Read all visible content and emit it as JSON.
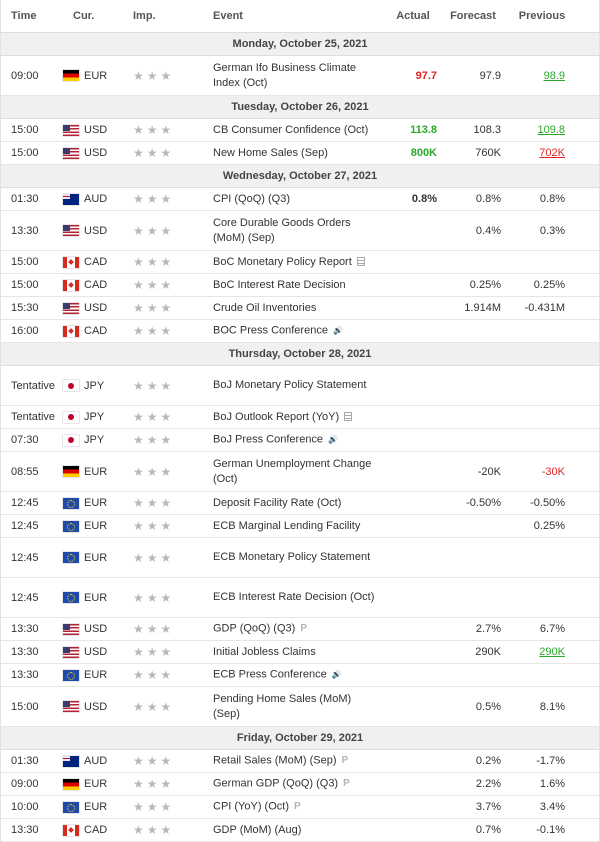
{
  "header": {
    "time": "Time",
    "cur": "Cur.",
    "imp": "Imp.",
    "event": "Event",
    "actual": "Actual",
    "forecast": "Forecast",
    "previous": "Previous"
  },
  "colors": {
    "positive": "#2ba92b",
    "negative": "#e02424",
    "stars": "#b8b8b8"
  },
  "days": [
    {
      "date": "Monday, October 25, 2021",
      "events": [
        {
          "time": "09:00",
          "flag": "de",
          "cur": "EUR",
          "event": "German Ifo Business Climate Index (Oct)",
          "icon": "",
          "actual": "97.7",
          "actual_style": "red bold",
          "forecast": "97.9",
          "previous": "98.9",
          "previous_style": "ul-green",
          "h": 2
        }
      ]
    },
    {
      "date": "Tuesday, October 26, 2021",
      "events": [
        {
          "time": "15:00",
          "flag": "us",
          "cur": "USD",
          "event": "CB Consumer Confidence (Oct)",
          "icon": "",
          "actual": "113.8",
          "actual_style": "green bold",
          "forecast": "108.3",
          "previous": "109.8",
          "previous_style": "ul-green",
          "h": 1
        },
        {
          "time": "15:00",
          "flag": "us",
          "cur": "USD",
          "event": "New Home Sales (Sep)",
          "icon": "",
          "actual": "800K",
          "actual_style": "green bold",
          "forecast": "760K",
          "previous": "702K",
          "previous_style": "ul-red",
          "h": 1
        }
      ]
    },
    {
      "date": "Wednesday, October 27, 2021",
      "events": [
        {
          "time": "01:30",
          "flag": "au",
          "cur": "AUD",
          "event": "CPI (QoQ) (Q3)",
          "icon": "",
          "actual": "0.8%",
          "actual_style": "bold",
          "forecast": "0.8%",
          "previous": "0.8%",
          "previous_style": "",
          "h": 1
        },
        {
          "time": "13:30",
          "flag": "us",
          "cur": "USD",
          "event": "Core Durable Goods Orders (MoM) (Sep)",
          "icon": "",
          "actual": "",
          "actual_style": "",
          "forecast": "0.4%",
          "previous": "0.3%",
          "previous_style": "",
          "h": 2
        },
        {
          "time": "15:00",
          "flag": "ca",
          "cur": "CAD",
          "event": "BoC Monetary Policy Report",
          "icon": "doc-icon",
          "actual": "",
          "actual_style": "",
          "forecast": "",
          "previous": "",
          "previous_style": "",
          "h": 1
        },
        {
          "time": "15:00",
          "flag": "ca",
          "cur": "CAD",
          "event": "BoC Interest Rate Decision",
          "icon": "",
          "actual": "",
          "actual_style": "",
          "forecast": "0.25%",
          "previous": "0.25%",
          "previous_style": "",
          "h": 1
        },
        {
          "time": "15:30",
          "flag": "us",
          "cur": "USD",
          "event": "Crude Oil Inventories",
          "icon": "",
          "actual": "",
          "actual_style": "",
          "forecast": "1.914M",
          "previous": "-0.431M",
          "previous_style": "",
          "h": 1
        },
        {
          "time": "16:00",
          "flag": "ca",
          "cur": "CAD",
          "event": "BOC Press Conference",
          "icon": "speaker-icon",
          "actual": "",
          "actual_style": "",
          "forecast": "",
          "previous": "",
          "previous_style": "",
          "h": 1
        }
      ]
    },
    {
      "date": "Thursday, October 28, 2021",
      "events": [
        {
          "time": "Tentative",
          "flag": "jp",
          "cur": "JPY",
          "event": "BoJ Monetary Policy Statement",
          "icon": "",
          "actual": "",
          "actual_style": "",
          "forecast": "",
          "previous": "",
          "previous_style": "",
          "h": 2
        },
        {
          "time": "Tentative",
          "flag": "jp",
          "cur": "JPY",
          "event": "BoJ Outlook Report (YoY)",
          "icon": "doc-icon",
          "actual": "",
          "actual_style": "",
          "forecast": "",
          "previous": "",
          "previous_style": "",
          "h": 1
        },
        {
          "time": "07:30",
          "flag": "jp",
          "cur": "JPY",
          "event": "BoJ Press Conference",
          "icon": "speaker-icon",
          "actual": "",
          "actual_style": "",
          "forecast": "",
          "previous": "",
          "previous_style": "",
          "h": 1
        },
        {
          "time": "08:55",
          "flag": "de",
          "cur": "EUR",
          "event": "German Unemployment Change (Oct)",
          "icon": "",
          "actual": "",
          "actual_style": "",
          "forecast": "-20K",
          "previous": "-30K",
          "previous_style": "red",
          "h": 2
        },
        {
          "time": "12:45",
          "flag": "eu",
          "cur": "EUR",
          "event": "Deposit Facility Rate (Oct)",
          "icon": "",
          "actual": "",
          "actual_style": "",
          "forecast": "-0.50%",
          "previous": "-0.50%",
          "previous_style": "",
          "h": 1
        },
        {
          "time": "12:45",
          "flag": "eu",
          "cur": "EUR",
          "event": "ECB Marginal Lending Facility",
          "icon": "",
          "actual": "",
          "actual_style": "",
          "forecast": "",
          "previous": "0.25%",
          "previous_style": "",
          "h": 1
        },
        {
          "time": "12:45",
          "flag": "eu",
          "cur": "EUR",
          "event": "ECB Monetary Policy Statement",
          "icon": "",
          "actual": "",
          "actual_style": "",
          "forecast": "",
          "previous": "",
          "previous_style": "",
          "h": 2
        },
        {
          "time": "12:45",
          "flag": "eu",
          "cur": "EUR",
          "event": "ECB Interest Rate Decision (Oct)",
          "icon": "",
          "actual": "",
          "actual_style": "",
          "forecast": "",
          "previous": "",
          "previous_style": "",
          "h": 2
        },
        {
          "time": "13:30",
          "flag": "us",
          "cur": "USD",
          "event": "GDP (QoQ) (Q3)",
          "icon": "prelim-icon",
          "actual": "",
          "actual_style": "",
          "forecast": "2.7%",
          "previous": "6.7%",
          "previous_style": "",
          "h": 1
        },
        {
          "time": "13:30",
          "flag": "us",
          "cur": "USD",
          "event": "Initial Jobless Claims",
          "icon": "",
          "actual": "",
          "actual_style": "",
          "forecast": "290K",
          "previous": "290K",
          "previous_style": "ul-green",
          "h": 1
        },
        {
          "time": "13:30",
          "flag": "eu",
          "cur": "EUR",
          "event": "ECB Press Conference",
          "icon": "speaker-icon",
          "actual": "",
          "actual_style": "",
          "forecast": "",
          "previous": "",
          "previous_style": "",
          "h": 1
        },
        {
          "time": "15:00",
          "flag": "us",
          "cur": "USD",
          "event": "Pending Home Sales (MoM) (Sep)",
          "icon": "",
          "actual": "",
          "actual_style": "",
          "forecast": "0.5%",
          "previous": "8.1%",
          "previous_style": "",
          "h": 2
        }
      ]
    },
    {
      "date": "Friday, October 29, 2021",
      "events": [
        {
          "time": "01:30",
          "flag": "au",
          "cur": "AUD",
          "event": "Retail Sales (MoM) (Sep)",
          "icon": "prelim-icon",
          "actual": "",
          "actual_style": "",
          "forecast": "0.2%",
          "previous": "-1.7%",
          "previous_style": "",
          "h": 1
        },
        {
          "time": "09:00",
          "flag": "de",
          "cur": "EUR",
          "event": "German GDP (QoQ) (Q3)",
          "icon": "prelim-icon",
          "actual": "",
          "actual_style": "",
          "forecast": "2.2%",
          "previous": "1.6%",
          "previous_style": "",
          "h": 1
        },
        {
          "time": "10:00",
          "flag": "eu",
          "cur": "EUR",
          "event": "CPI (YoY) (Oct)",
          "icon": "prelim-icon",
          "actual": "",
          "actual_style": "",
          "forecast": "3.7%",
          "previous": "3.4%",
          "previous_style": "",
          "h": 1
        },
        {
          "time": "13:30",
          "flag": "ca",
          "cur": "CAD",
          "event": "GDP (MoM) (Aug)",
          "icon": "",
          "actual": "",
          "actual_style": "",
          "forecast": "0.7%",
          "previous": "-0.1%",
          "previous_style": "",
          "h": 1
        }
      ]
    }
  ]
}
